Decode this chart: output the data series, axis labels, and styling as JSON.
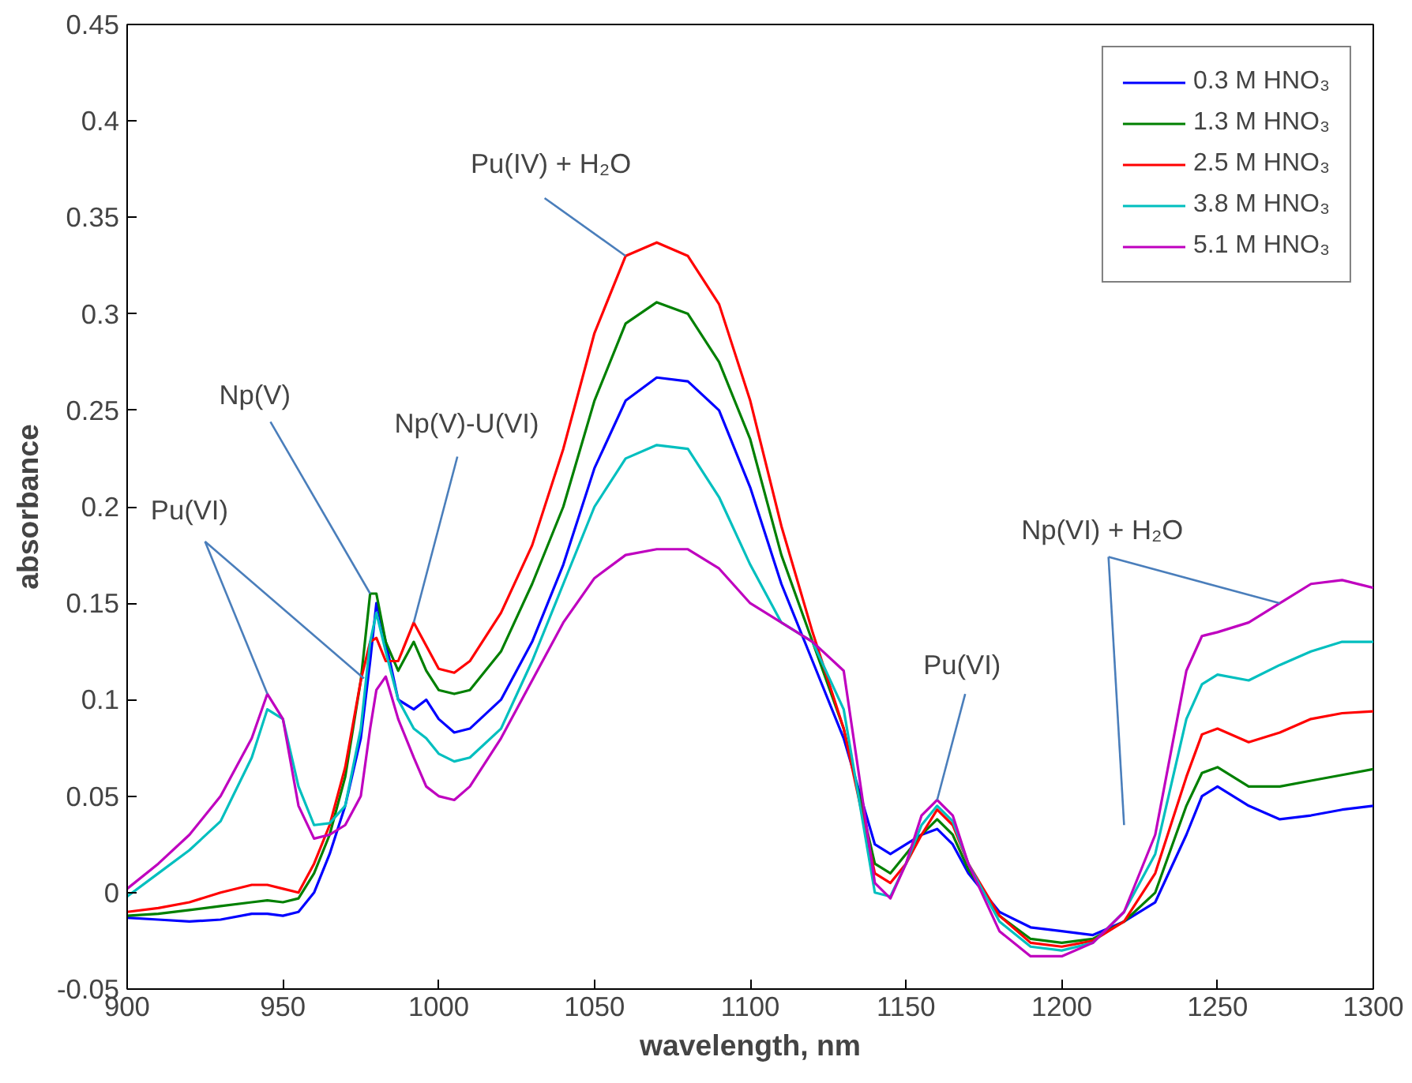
{
  "chart_data": {
    "type": "line",
    "xlabel": "wavelength, nm",
    "ylabel": "absorbance",
    "x": [
      900,
      910,
      920,
      930,
      940,
      945,
      950,
      955,
      960,
      965,
      970,
      975,
      978,
      980,
      983,
      987,
      992,
      996,
      1000,
      1005,
      1010,
      1020,
      1030,
      1040,
      1050,
      1060,
      1070,
      1080,
      1090,
      1100,
      1110,
      1120,
      1130,
      1140,
      1145,
      1150,
      1155,
      1160,
      1165,
      1170,
      1180,
      1190,
      1200,
      1210,
      1220,
      1230,
      1240,
      1245,
      1250,
      1260,
      1270,
      1280,
      1290,
      1300
    ],
    "series": [
      {
        "name": "0.3 M HNO₃",
        "color": "#0000ff",
        "values": [
          -0.013,
          -0.014,
          -0.015,
          -0.014,
          -0.011,
          -0.011,
          -0.012,
          -0.01,
          0.0,
          0.02,
          0.045,
          0.08,
          0.12,
          0.15,
          0.13,
          0.1,
          0.095,
          0.1,
          0.09,
          0.083,
          0.085,
          0.1,
          0.13,
          0.17,
          0.22,
          0.255,
          0.267,
          0.265,
          0.25,
          0.21,
          0.16,
          0.12,
          0.08,
          0.025,
          0.02,
          0.025,
          0.03,
          0.033,
          0.025,
          0.01,
          -0.01,
          -0.018,
          -0.02,
          -0.022,
          -0.015,
          -0.005,
          0.03,
          0.05,
          0.055,
          0.045,
          0.038,
          0.04,
          0.043,
          0.045
        ]
      },
      {
        "name": "1.3 M HNO₃",
        "color": "#008000",
        "values": [
          -0.012,
          -0.011,
          -0.009,
          -0.007,
          -0.005,
          -0.004,
          -0.005,
          -0.003,
          0.01,
          0.03,
          0.06,
          0.11,
          0.155,
          0.155,
          0.13,
          0.115,
          0.13,
          0.115,
          0.105,
          0.103,
          0.105,
          0.125,
          0.16,
          0.2,
          0.255,
          0.295,
          0.306,
          0.3,
          0.275,
          0.235,
          0.175,
          0.13,
          0.085,
          0.015,
          0.01,
          0.02,
          0.03,
          0.038,
          0.03,
          0.012,
          -0.012,
          -0.024,
          -0.026,
          -0.024,
          -0.015,
          0.0,
          0.045,
          0.062,
          0.065,
          0.055,
          0.055,
          0.058,
          0.061,
          0.064
        ]
      },
      {
        "name": "2.5 M HNO₃",
        "color": "#ff0000",
        "values": [
          -0.01,
          -0.008,
          -0.005,
          0.0,
          0.004,
          0.004,
          0.002,
          0.0,
          0.015,
          0.035,
          0.065,
          0.11,
          0.13,
          0.132,
          0.12,
          0.12,
          0.14,
          0.128,
          0.116,
          0.114,
          0.12,
          0.145,
          0.18,
          0.23,
          0.29,
          0.33,
          0.337,
          0.33,
          0.305,
          0.255,
          0.19,
          0.135,
          0.085,
          0.01,
          0.005,
          0.015,
          0.03,
          0.043,
          0.035,
          0.015,
          -0.012,
          -0.026,
          -0.028,
          -0.025,
          -0.015,
          0.01,
          0.06,
          0.082,
          0.085,
          0.078,
          0.083,
          0.09,
          0.093,
          0.094
        ]
      },
      {
        "name": "3.8 M HNO₃",
        "color": "#00bfbf",
        "values": [
          -0.002,
          0.01,
          0.022,
          0.037,
          0.07,
          0.095,
          0.09,
          0.055,
          0.035,
          0.036,
          0.045,
          0.085,
          0.13,
          0.145,
          0.125,
          0.1,
          0.085,
          0.08,
          0.072,
          0.068,
          0.07,
          0.085,
          0.12,
          0.16,
          0.2,
          0.225,
          0.232,
          0.23,
          0.205,
          0.17,
          0.14,
          0.13,
          0.095,
          0.0,
          -0.002,
          0.015,
          0.035,
          0.045,
          0.037,
          0.015,
          -0.015,
          -0.028,
          -0.03,
          -0.026,
          -0.01,
          0.02,
          0.09,
          0.108,
          0.113,
          0.11,
          0.118,
          0.125,
          0.13,
          0.13
        ]
      },
      {
        "name": "5.1 M HNO₃",
        "color": "#bf00bf",
        "values": [
          0.002,
          0.015,
          0.03,
          0.05,
          0.08,
          0.103,
          0.09,
          0.045,
          0.028,
          0.03,
          0.035,
          0.05,
          0.085,
          0.105,
          0.112,
          0.09,
          0.07,
          0.055,
          0.05,
          0.048,
          0.055,
          0.08,
          0.11,
          0.14,
          0.163,
          0.175,
          0.178,
          0.178,
          0.168,
          0.15,
          0.14,
          0.13,
          0.115,
          0.005,
          -0.003,
          0.015,
          0.04,
          0.048,
          0.04,
          0.015,
          -0.02,
          -0.033,
          -0.033,
          -0.026,
          -0.01,
          0.03,
          0.115,
          0.133,
          0.135,
          0.14,
          0.15,
          0.16,
          0.162,
          0.158
        ]
      }
    ],
    "xlim": [
      900,
      1300
    ],
    "xticks": [
      900,
      950,
      1000,
      1050,
      1100,
      1150,
      1200,
      1250,
      1300
    ],
    "ylim": [
      -0.05,
      0.45
    ],
    "yticks": [
      -0.05,
      0,
      0.05,
      0.1,
      0.15,
      0.2,
      0.25,
      0.3,
      0.35,
      0.4,
      0.45
    ],
    "annotations": [
      {
        "text": "Pu(VI)",
        "x": 945,
        "y": 0.103
      },
      {
        "text": "Np(V)",
        "x": 978,
        "y": 0.155
      },
      {
        "text": "Np(V)-U(VI)",
        "x": 992,
        "y": 0.14
      },
      {
        "text": "Pu(IV) + H₂O",
        "x": 1060,
        "y": 0.33
      },
      {
        "text": "Pu(VI)",
        "x": 1160,
        "y": 0.048
      },
      {
        "text": "Np(VI) + H₂O",
        "x": 1270,
        "y": 0.15
      }
    ],
    "grid": false,
    "legend": "top right",
    "marker": "none",
    "line_style": "solid"
  }
}
